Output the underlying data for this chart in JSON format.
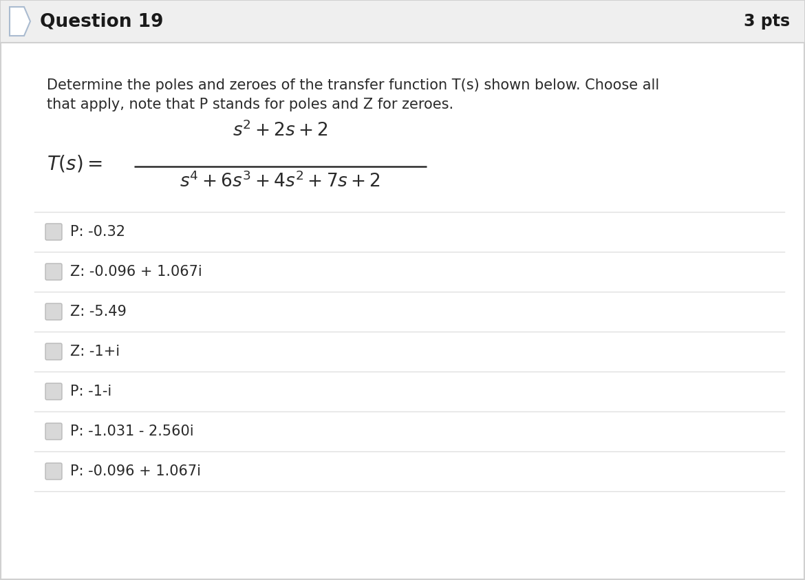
{
  "title": "Question 19",
  "pts": "3 pts",
  "description_line1": "Determine the poles and zeroes of the transfer function T(s) shown below. Choose all",
  "description_line2": "that apply, note that P stands for poles and Z for zeroes.",
  "options": [
    "P: -0.32",
    "Z: -0.096 + 1.067i",
    "Z: -5.49",
    "Z: -1+i",
    "P: -1-i",
    "P: -1.031 - 2.560i",
    "P: -0.096 + 1.067i"
  ],
  "bg_header": "#efefef",
  "bg_body": "#ffffff",
  "border_color": "#d0d0d0",
  "title_color": "#1a1a1a",
  "pts_color": "#1a1a1a",
  "text_color": "#2a2a2a",
  "math_color": "#2a2a2a",
  "option_text_color": "#2a2a2a",
  "separator_color": "#e0e0e0",
  "fig_width": 11.7,
  "fig_height": 8.43
}
